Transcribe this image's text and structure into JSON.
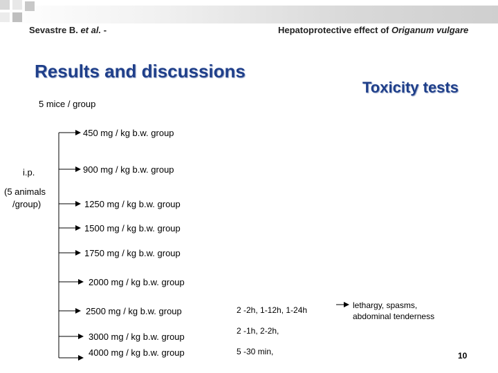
{
  "header": {
    "left_author": "Sevastre B.",
    "left_etal": "et al.",
    "left_dash": "-",
    "right_prefix": "Hepatoprotective effect of",
    "right_species": "Origanum vulgare"
  },
  "title": "Results and discussions",
  "subtitle": "Toxicity tests",
  "group_note": "5 mice / group",
  "route": {
    "line1": "i.p.",
    "line2": "(5 animals",
    "line3": "/group)"
  },
  "doses": [
    "450 mg / kg b.w. group",
    "900 mg / kg b.w. group",
    "1250 mg / kg b.w. group",
    "1500 mg / kg b.w. group",
    "1750 mg / kg b.w. group",
    "2000 mg / kg b.w. group",
    "2500 mg / kg b.w. group",
    "3000 mg / kg b.w. group",
    "4000 mg / kg b.w. group"
  ],
  "onset": [
    "2 -2h, 1-12h, 1-24h",
    "2 -1h, 2-2h,",
    "5 -30 min,"
  ],
  "effects": {
    "line1": "lethargy, spasms,",
    "line2": "abdominal tenderness"
  },
  "page_number": "10"
}
